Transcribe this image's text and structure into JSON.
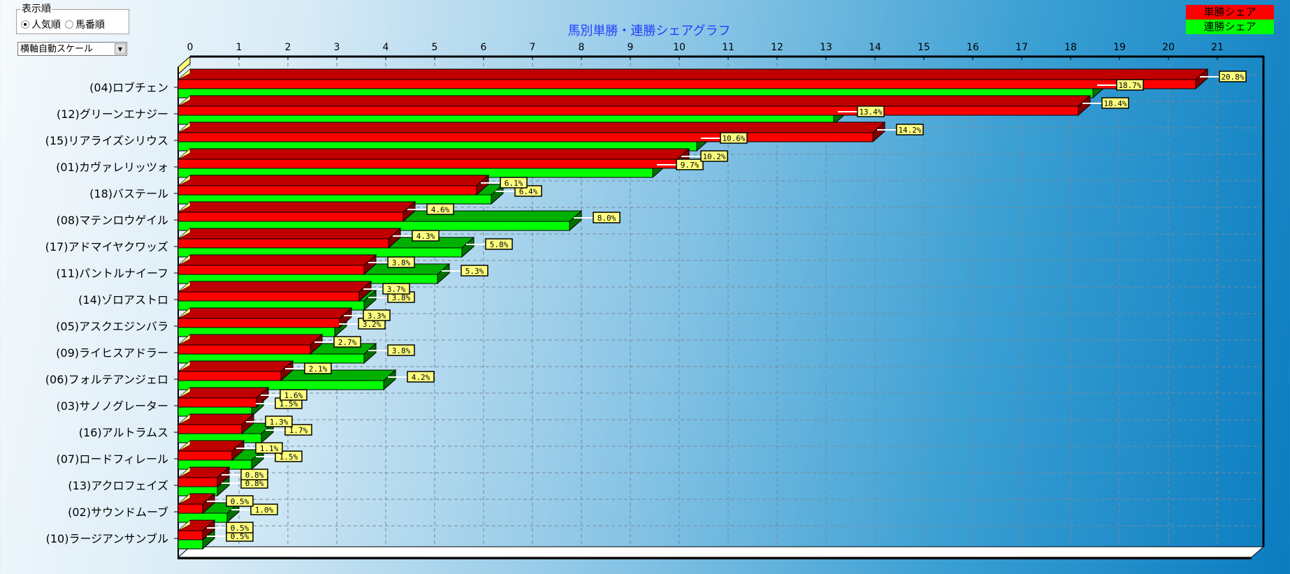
{
  "controls": {
    "order_group_label": "表示順",
    "order_options": [
      {
        "label": "人気順",
        "selected": true
      },
      {
        "label": "馬番順",
        "selected": false
      }
    ],
    "scale_select_value": "横軸自動スケール"
  },
  "legend": [
    {
      "label": "単勝シェア",
      "color": "#ff0000"
    },
    {
      "label": "連勝シェア",
      "color": "#00ff00"
    }
  ],
  "chart_data": {
    "type": "bar",
    "orientation": "horizontal",
    "style": "3d",
    "title": "馬別単勝・連勝シェアグラフ",
    "xlim": [
      0,
      21
    ],
    "xticks": [
      0,
      1,
      2,
      3,
      4,
      5,
      6,
      7,
      8,
      9,
      10,
      11,
      12,
      13,
      14,
      15,
      16,
      17,
      18,
      19,
      20,
      21
    ],
    "grid": true,
    "legend_position": "top-right",
    "categories": [
      "(04)ロブチェン",
      "(12)グリーンエナジー",
      "(15)リアライズシリウス",
      "(01)カヴァレリッツォ",
      "(18)バステール",
      "(08)マテンロウゲイル",
      "(17)アドマイヤクワッズ",
      "(11)パントルナイーフ",
      "(14)ゾロアストロ",
      "(05)アスクエジンバラ",
      "(09)ライヒスアドラー",
      "(06)フォルテアンジェロ",
      "(03)サノノグレーター",
      "(16)アルトラムス",
      "(07)ロードフィレール",
      "(13)アクロフェイズ",
      "(02)サウンドムーブ",
      "(10)ラージアンサンブル"
    ],
    "series": [
      {
        "name": "単勝シェア",
        "color": "#ff0000",
        "values": [
          20.8,
          18.4,
          14.2,
          10.2,
          6.1,
          4.6,
          4.3,
          3.8,
          3.7,
          3.3,
          2.7,
          2.1,
          1.6,
          1.3,
          1.1,
          0.8,
          0.5,
          0.5
        ],
        "labels": [
          "20.8%",
          "18.4%",
          "14.2%",
          "10.2%",
          "6.1%",
          "4.6%",
          "4.3%",
          "3.8%",
          "3.7%",
          "3.3%",
          "2.7%",
          "2.1%",
          "1.6%",
          "1.3%",
          "1.1%",
          "0.8%",
          "0.5%",
          "0.5%"
        ]
      },
      {
        "name": "連勝シェア",
        "color": "#00ff00",
        "values": [
          18.7,
          13.4,
          10.6,
          9.7,
          6.4,
          8.0,
          5.8,
          5.3,
          3.8,
          3.2,
          3.8,
          4.2,
          1.5,
          1.7,
          1.5,
          0.8,
          1.0,
          0.5
        ],
        "labels": [
          "18.7%",
          "13.4%",
          "10.6%",
          "9.7%",
          "6.4%",
          "8.0%",
          "5.8%",
          "5.3%",
          "3.8%",
          "3.2%",
          "3.8%",
          "4.2%",
          "1.5%",
          "1.7%",
          "1.5%",
          "0.8%",
          "1.0%",
          "0.5%"
        ]
      }
    ]
  }
}
